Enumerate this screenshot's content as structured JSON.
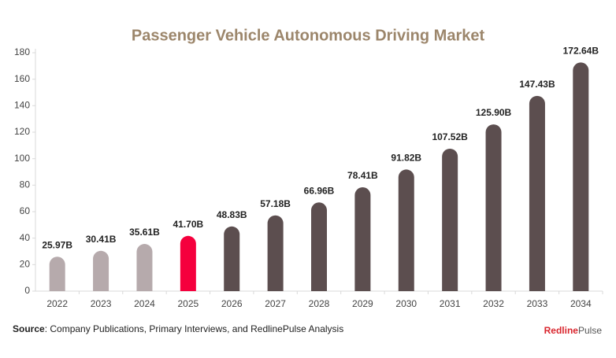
{
  "chart_data": {
    "type": "bar",
    "title": "Passenger Vehicle Autonomous Driving Market",
    "categories": [
      "2022",
      "2023",
      "2024",
      "2025",
      "2026",
      "2027",
      "2028",
      "2029",
      "2030",
      "2031",
      "2032",
      "2033",
      "2034"
    ],
    "values": [
      25.97,
      30.41,
      35.61,
      41.7,
      48.83,
      57.18,
      66.96,
      78.41,
      91.82,
      107.52,
      125.9,
      147.43,
      172.64
    ],
    "value_labels": [
      "25.97B",
      "30.41B",
      "35.61B",
      "41.70B",
      "48.83B",
      "57.18B",
      "66.96B",
      "78.41B",
      "91.82B",
      "107.52B",
      "125.90B",
      "147.43B",
      "172.64B"
    ],
    "colors": [
      "#b6aaac",
      "#b6aaac",
      "#b6aaac",
      "#f5003d",
      "#5c4e4f",
      "#5c4e4f",
      "#5c4e4f",
      "#5c4e4f",
      "#5c4e4f",
      "#5c4e4f",
      "#5c4e4f",
      "#5c4e4f",
      "#5c4e4f"
    ],
    "ylim": [
      0,
      180
    ],
    "yticks": [
      0,
      20,
      40,
      60,
      80,
      100,
      120,
      140,
      160,
      180
    ],
    "grid": false
  },
  "footer": {
    "source_label": "Source",
    "source_text": ": Company Publications, Primary Interviews, and RedlinePulse Analysis",
    "logo_first": "Redline",
    "logo_second": "Pulse"
  }
}
